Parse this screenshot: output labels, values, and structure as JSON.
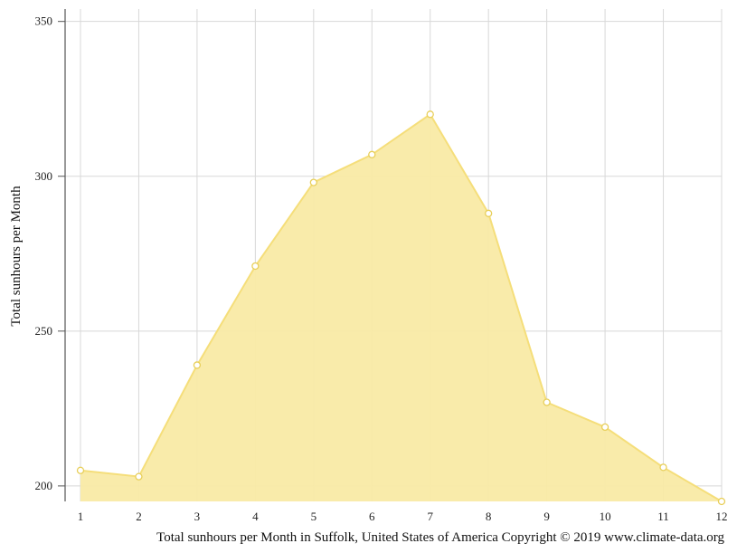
{
  "chart_data": {
    "type": "area",
    "x": [
      1,
      2,
      3,
      4,
      5,
      6,
      7,
      8,
      9,
      10,
      11,
      12
    ],
    "values": [
      205,
      203,
      239,
      271,
      298,
      307,
      320,
      288,
      227,
      219,
      206,
      195
    ],
    "ylabel": "Total sunhours per Month",
    "xlabel": "Total sunhours per Month in Suffolk, United States of America Copyright © 2019 www.climate-data.org",
    "yticks": [
      200,
      250,
      300,
      350
    ],
    "xticks": [
      1,
      2,
      3,
      4,
      5,
      6,
      7,
      8,
      9,
      10,
      11,
      12
    ],
    "ylim": [
      195,
      354
    ],
    "xlim": [
      1,
      12
    ],
    "grid": true,
    "colors": {
      "fill": "#f9eaa5",
      "line": "#f5de7a",
      "marker_fill": "#ffffff",
      "marker_stroke": "#e8cf5a",
      "grid": "#d8d8d8",
      "axis": "#555555"
    }
  }
}
